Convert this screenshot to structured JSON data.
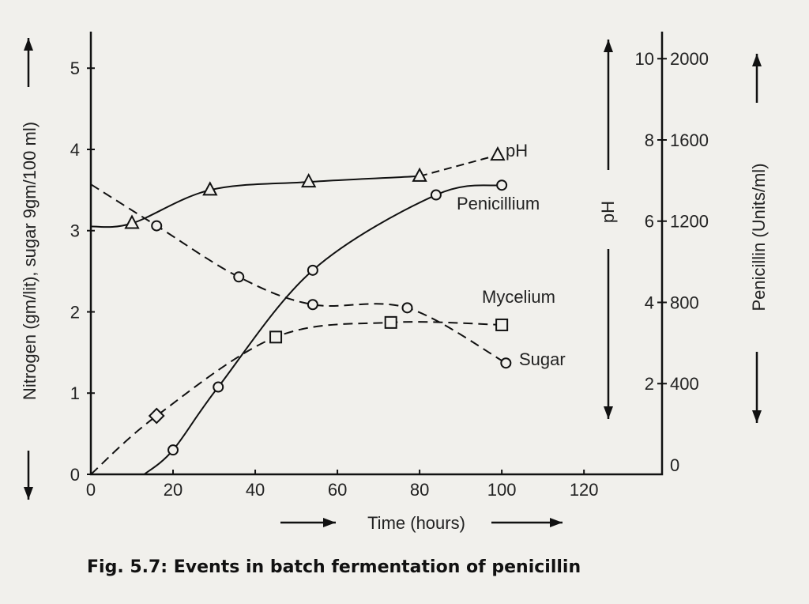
{
  "chart_data": {
    "type": "line",
    "title": "Fig. 5.7: Events in batch fermentation of penicillin",
    "xlabel": "Time (hours)",
    "ylabel_left": "Nitrogen (gm/lit), sugar 9gm/100 ml)",
    "ylabel_right_inner": "pH",
    "ylabel_right_outer": "Penicillin (Units/ml)",
    "xlim": [
      0,
      139
    ],
    "ylim_left": [
      0,
      5.45
    ],
    "ylim_ph": [
      0,
      10.9
    ],
    "ylim_penicillin": [
      0,
      2180
    ],
    "x_ticks": [
      "0",
      "20",
      "40",
      "60",
      "80",
      "100",
      "120"
    ],
    "y_ticks_left": [
      "0",
      "1",
      "2",
      "3",
      "4",
      "5"
    ],
    "y_ticks_ph": [
      "2",
      "4",
      "6",
      "8",
      "10"
    ],
    "y_ticks_penicillin": [
      "0",
      "400",
      "800",
      "1200",
      "1600",
      "2000"
    ],
    "grid": false,
    "series": [
      {
        "name": "pH",
        "axis": "ph",
        "marker": "triangle",
        "style": "solid-then-dashed",
        "curve_start": [
          0,
          6.1
        ],
        "x": [
          10,
          29,
          53,
          80,
          99
        ],
        "y": [
          6.18,
          7.0,
          7.2,
          7.34,
          7.86
        ]
      },
      {
        "name": "Penicillium",
        "axis": "penicillin",
        "marker": "circle",
        "style": "solid",
        "curve_start": [
          13,
          0
        ],
        "x": [
          20,
          31,
          54,
          84,
          100
        ],
        "y": [
          120,
          430,
          1005,
          1376,
          1424
        ]
      },
      {
        "name": "Mycelium",
        "axis": "left",
        "marker": "square",
        "style": "dashed",
        "curve_start": [
          0,
          0
        ],
        "x": [
          16,
          45,
          73,
          100
        ],
        "y": [
          0.72,
          1.69,
          1.87,
          1.84
        ]
      },
      {
        "name": "Sugar",
        "axis": "left",
        "marker": "circle",
        "style": "dashed",
        "curve_start": [
          0,
          3.57
        ],
        "x": [
          16,
          36,
          54,
          77,
          101
        ],
        "y": [
          3.06,
          2.43,
          2.09,
          2.05,
          1.37
        ]
      }
    ]
  },
  "caption": "Fig. 5.7: Events in batch fermentation of penicillin"
}
